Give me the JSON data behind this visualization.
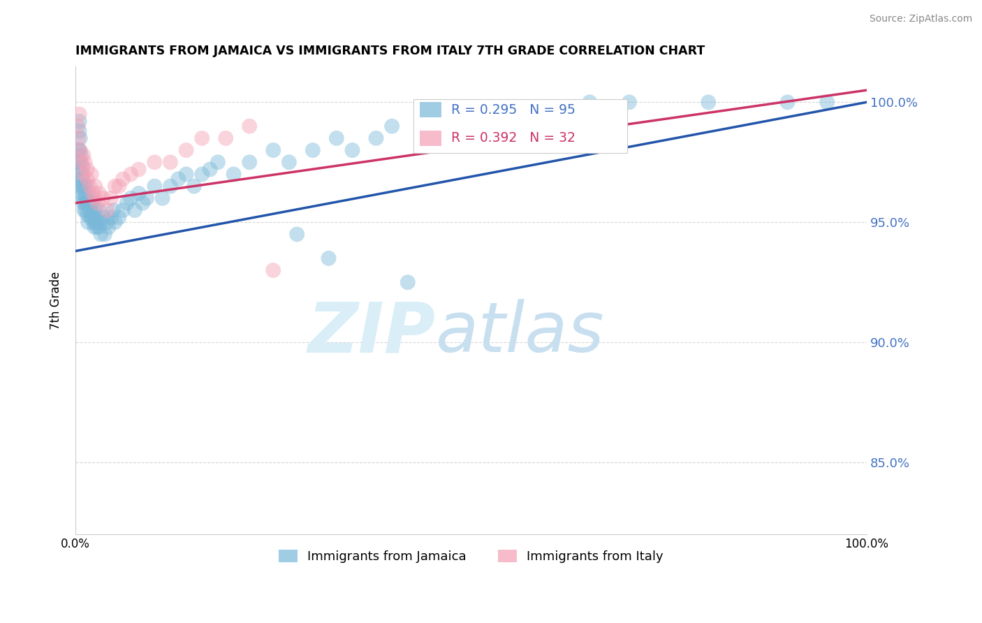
{
  "title": "IMMIGRANTS FROM JAMAICA VS IMMIGRANTS FROM ITALY 7TH GRADE CORRELATION CHART",
  "source": "Source: ZipAtlas.com",
  "ylabel": "7th Grade",
  "xlim": [
    0.0,
    100.0
  ],
  "ylim": [
    82.0,
    101.5
  ],
  "yticks": [
    85.0,
    90.0,
    95.0,
    100.0
  ],
  "ytick_labels": [
    "85.0%",
    "90.0%",
    "95.0%",
    "100.0%"
  ],
  "legend_jamaica": "Immigrants from Jamaica",
  "legend_italy": "Immigrants from Italy",
  "r_jamaica": 0.295,
  "n_jamaica": 95,
  "r_italy": 0.392,
  "n_italy": 32,
  "jamaica_color": "#7ab8d9",
  "italy_color": "#f4a0b5",
  "jamaica_line_color": "#2255aa",
  "italy_line_color": "#cc3366",
  "watermark_color": "#daeef8",
  "grid_color": "#cccccc",
  "right_tick_color": "#4472c4",
  "jamaica_x": [
    0.2,
    0.3,
    0.3,
    0.4,
    0.4,
    0.5,
    0.5,
    0.5,
    0.6,
    0.6,
    0.7,
    0.7,
    0.8,
    0.8,
    0.9,
    0.9,
    1.0,
    1.0,
    1.0,
    1.1,
    1.1,
    1.2,
    1.2,
    1.3,
    1.3,
    1.4,
    1.4,
    1.5,
    1.5,
    1.6,
    1.6,
    1.7,
    1.8,
    1.9,
    2.0,
    2.0,
    2.1,
    2.1,
    2.2,
    2.3,
    2.4,
    2.5,
    2.5,
    2.6,
    2.7,
    2.8,
    3.0,
    3.0,
    3.2,
    3.3,
    3.5,
    3.7,
    4.0,
    4.2,
    4.5,
    4.8,
    5.0,
    5.5,
    6.0,
    6.5,
    7.0,
    7.5,
    8.0,
    8.5,
    9.0,
    10.0,
    11.0,
    12.0,
    13.0,
    14.0,
    15.0,
    16.0,
    17.0,
    18.0,
    20.0,
    22.0,
    25.0,
    27.0,
    30.0,
    33.0,
    35.0,
    38.0,
    40.0,
    45.0,
    50.0,
    55.0,
    60.0,
    65.0,
    70.0,
    80.0,
    90.0,
    95.0,
    28.0,
    32.0,
    42.0
  ],
  "jamaica_y": [
    96.5,
    97.2,
    96.8,
    98.0,
    97.5,
    99.2,
    98.8,
    98.0,
    98.5,
    97.5,
    97.8,
    96.5,
    97.0,
    96.2,
    97.3,
    96.8,
    96.5,
    95.8,
    96.0,
    96.5,
    95.5,
    96.2,
    95.8,
    96.0,
    95.5,
    95.8,
    96.5,
    96.0,
    95.3,
    95.8,
    95.0,
    95.5,
    95.8,
    95.2,
    95.5,
    96.0,
    95.2,
    95.8,
    95.3,
    95.0,
    94.8,
    95.5,
    95.0,
    95.2,
    94.8,
    95.0,
    95.5,
    94.8,
    94.5,
    95.0,
    95.2,
    94.5,
    95.0,
    94.8,
    95.2,
    95.5,
    95.0,
    95.2,
    95.5,
    95.8,
    96.0,
    95.5,
    96.2,
    95.8,
    96.0,
    96.5,
    96.0,
    96.5,
    96.8,
    97.0,
    96.5,
    97.0,
    97.2,
    97.5,
    97.0,
    97.5,
    98.0,
    97.5,
    98.0,
    98.5,
    98.0,
    98.5,
    99.0,
    98.5,
    99.0,
    99.5,
    99.5,
    100.0,
    100.0,
    100.0,
    100.0,
    100.0,
    94.5,
    93.5,
    92.5
  ],
  "italy_x": [
    0.3,
    0.4,
    0.5,
    0.6,
    0.8,
    1.0,
    1.0,
    1.2,
    1.5,
    1.5,
    1.8,
    2.0,
    2.2,
    2.5,
    2.5,
    2.8,
    3.0,
    3.5,
    4.0,
    4.5,
    5.0,
    5.5,
    6.0,
    7.0,
    8.0,
    10.0,
    12.0,
    14.0,
    16.0,
    19.0,
    25.0,
    22.0
  ],
  "italy_y": [
    99.0,
    98.5,
    99.5,
    98.0,
    97.5,
    97.8,
    97.0,
    97.5,
    96.8,
    97.2,
    96.5,
    97.0,
    96.2,
    96.5,
    96.0,
    95.8,
    96.2,
    96.0,
    95.5,
    96.0,
    96.5,
    96.5,
    96.8,
    97.0,
    97.2,
    97.5,
    97.5,
    98.0,
    98.5,
    98.5,
    93.0,
    99.0
  ],
  "blue_line_x0": 0.0,
  "blue_line_y0": 93.8,
  "blue_line_x1": 100.0,
  "blue_line_y1": 100.0,
  "pink_line_x0": 0.0,
  "pink_line_y0": 95.8,
  "pink_line_x1": 100.0,
  "pink_line_y1": 100.5
}
